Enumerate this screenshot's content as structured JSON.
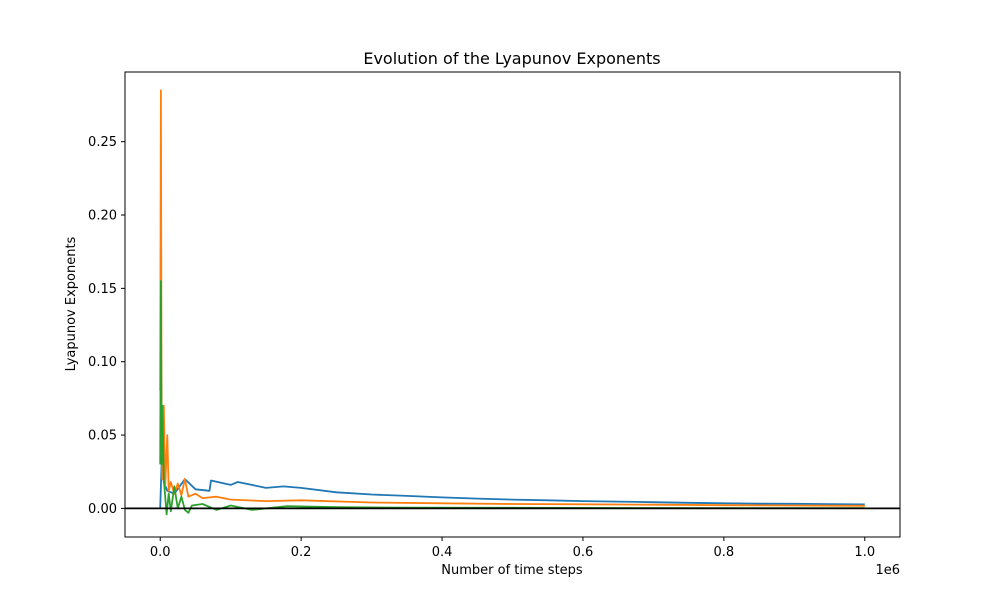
{
  "chart_data": {
    "type": "line",
    "title": "Evolution of the Lyapunov Exponents",
    "xlabel": "Number of time steps",
    "ylabel": "Lyapunov Exponents",
    "x_offset_label": "1e6",
    "xlim": [
      -50000,
      1050000
    ],
    "ylim": [
      -0.0195,
      0.2975
    ],
    "xticks": [
      0,
      200000,
      400000,
      600000,
      800000,
      1000000
    ],
    "xtick_labels": [
      "0.0",
      "0.2",
      "0.4",
      "0.6",
      "0.8",
      "1.0"
    ],
    "yticks": [
      0.0,
      0.05,
      0.1,
      0.15,
      0.2,
      0.25
    ],
    "ytick_labels": [
      "0.00",
      "0.05",
      "0.10",
      "0.15",
      "0.20",
      "0.25"
    ],
    "grid": false,
    "reference_line": {
      "y": 0.0,
      "color": "#000000"
    },
    "series": [
      {
        "color": "#1f77b4",
        "x": [
          0,
          2000,
          5000,
          10000,
          20000,
          35000,
          50000,
          70000,
          72000,
          100000,
          110000,
          130000,
          150000,
          175000,
          200000,
          250000,
          300000,
          350000,
          400000,
          450000,
          500000,
          550000,
          600000,
          650000,
          700000,
          750000,
          800000,
          850000,
          900000,
          950000,
          1000000
        ],
        "y": [
          0.0,
          0.03,
          0.018,
          0.012,
          0.01,
          0.02,
          0.013,
          0.012,
          0.019,
          0.016,
          0.018,
          0.016,
          0.014,
          0.015,
          0.014,
          0.011,
          0.0095,
          0.0085,
          0.0075,
          0.0067,
          0.006,
          0.0055,
          0.005,
          0.0046,
          0.0042,
          0.0038,
          0.0035,
          0.0033,
          0.0031,
          0.0029,
          0.0027
        ]
      },
      {
        "color": "#ff7f0e",
        "x": [
          0,
          1000,
          2000,
          3000,
          5000,
          7000,
          10000,
          12000,
          15000,
          20000,
          25000,
          30000,
          35000,
          40000,
          50000,
          60000,
          80000,
          100000,
          150000,
          200000,
          300000,
          400000,
          500000,
          600000,
          700000,
          800000,
          900000,
          1000000
        ],
        "y": [
          0.08,
          0.285,
          0.06,
          0.02,
          0.07,
          0.015,
          0.05,
          0.012,
          0.018,
          0.01,
          0.017,
          0.009,
          0.02,
          0.008,
          0.01,
          0.007,
          0.008,
          0.006,
          0.005,
          0.0055,
          0.004,
          0.0035,
          0.003,
          0.0028,
          0.0025,
          0.0022,
          0.002,
          0.0018
        ]
      },
      {
        "color": "#2ca02c",
        "x": [
          0,
          1000,
          2000,
          3000,
          5000,
          7000,
          9000,
          12000,
          15000,
          20000,
          25000,
          30000,
          35000,
          40000,
          45000,
          60000,
          80000,
          100000,
          130000,
          180000,
          250000,
          350000,
          500000,
          700000,
          850000,
          1000000
        ],
        "y": [
          0.03,
          0.155,
          0.03,
          0.07,
          0.02,
          0.008,
          -0.004,
          0.01,
          -0.002,
          0.015,
          0.0,
          0.008,
          -0.001,
          -0.003,
          0.002,
          0.003,
          -0.001,
          0.002,
          -0.001,
          0.0015,
          0.0008,
          0.0005,
          0.0004,
          0.0003,
          0.0002,
          0.0002
        ]
      }
    ]
  }
}
